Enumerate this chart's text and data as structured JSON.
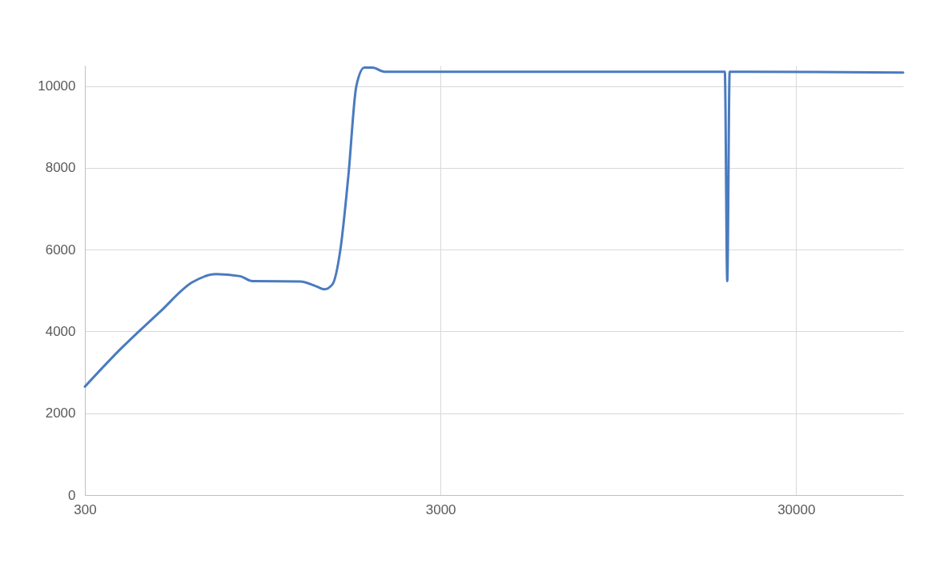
{
  "chart_data": {
    "type": "line",
    "x": [
      300,
      377,
      488,
      601,
      702,
      820,
      887,
      1211,
      1343,
      1414,
      1490,
      1569,
      1652,
      1740,
      1833,
      1931,
      2087,
      6528,
      18910,
      19210,
      19510,
      60000
    ],
    "series": [
      {
        "color": "#4a7bbf",
        "values": [
          2650,
          3560,
          4480,
          5200,
          5400,
          5350,
          5230,
          5220,
          5100,
          5030,
          5150,
          6000,
          7800,
          10000,
          10450,
          10450,
          10350,
          10350,
          10350,
          5230,
          10350,
          10330
        ]
      }
    ],
    "log": "x",
    "xlim": [
      300,
      60000
    ],
    "xticks": [
      300,
      3000,
      30000
    ],
    "ylim": [
      0,
      10500
    ],
    "yticks": [
      0,
      2000,
      4000,
      6000,
      8000,
      10000
    ],
    "grid": true,
    "marker": "none",
    "line_style": "solid"
  }
}
